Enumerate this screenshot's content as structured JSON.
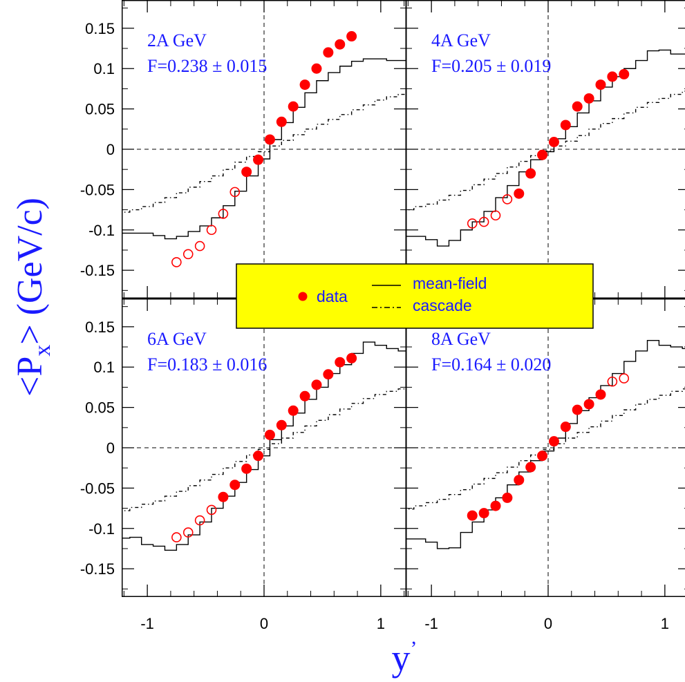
{
  "chart_data": {
    "type": "scatter",
    "xlabel": "y'",
    "ylabel": "<Px> (GeV/c)",
    "xlim": [
      -1.22,
      1.22
    ],
    "ylim": [
      -0.185,
      0.185
    ],
    "xticks": [
      -1,
      0,
      1
    ],
    "xtick_labels": [
      "-1",
      "0",
      "1"
    ],
    "yticks": [
      -0.15,
      -0.1,
      -0.05,
      0,
      0.05,
      0.1,
      0.15
    ],
    "ytick_labels": [
      "-0.15",
      "-0.1",
      "-0.05",
      "0",
      "0.05",
      "0.1",
      "0.15"
    ],
    "legend": {
      "placement": "center",
      "background": "#ffff00",
      "entries": [
        {
          "label": "data",
          "style": "filled-circle"
        },
        {
          "label": "mean-field",
          "style": "solid-line"
        },
        {
          "label": "cascade",
          "style": "dash-dot-line"
        }
      ]
    },
    "colors": {
      "data": "#ff0000",
      "text": "#1a1aff",
      "lines": "#000000"
    },
    "panels": [
      {
        "title": "2A GeV",
        "subtitle": "F=0.238 ± 0.015",
        "data_filled": {
          "x": [
            -0.15,
            -0.05,
            0.05,
            0.15,
            0.25,
            0.35,
            0.45,
            0.55,
            0.65,
            0.75
          ],
          "y": [
            -0.028,
            -0.013,
            0.012,
            0.034,
            0.053,
            0.08,
            0.1,
            0.12,
            0.13,
            0.14
          ]
        },
        "data_open": {
          "x": [
            -0.25,
            -0.35,
            -0.45,
            -0.55,
            -0.65,
            -0.75
          ],
          "y": [
            -0.053,
            -0.08,
            -0.1,
            -0.12,
            -0.13,
            -0.14
          ]
        },
        "mean_field": {
          "x": [
            -1.25,
            -0.95,
            -0.85,
            -0.75,
            -0.65,
            -0.55,
            -0.45,
            -0.35,
            -0.25,
            -0.15,
            -0.05,
            0.05,
            0.15,
            0.25,
            0.35,
            0.45,
            0.55,
            0.65,
            0.75,
            0.85,
            0.95,
            1.05,
            1.25
          ],
          "y": [
            -0.104,
            -0.107,
            -0.111,
            -0.108,
            -0.102,
            -0.095,
            -0.085,
            -0.07,
            -0.052,
            -0.033,
            -0.012,
            0.012,
            0.033,
            0.052,
            0.07,
            0.085,
            0.095,
            0.103,
            0.109,
            0.112,
            0.112,
            0.11,
            0.108
          ]
        },
        "cascade": {
          "x": [
            -1.25,
            -1.15,
            -1.05,
            -0.95,
            -0.85,
            -0.75,
            -0.65,
            -0.55,
            -0.45,
            -0.35,
            -0.25,
            -0.15,
            -0.05,
            0.05,
            0.15,
            0.25,
            0.35,
            0.45,
            0.55,
            0.65,
            0.75,
            0.85,
            0.95,
            1.05,
            1.15,
            1.25
          ],
          "y": [
            -0.078,
            -0.075,
            -0.071,
            -0.066,
            -0.06,
            -0.054,
            -0.047,
            -0.04,
            -0.033,
            -0.025,
            -0.016,
            -0.009,
            -0.003,
            0.004,
            0.011,
            0.018,
            0.025,
            0.031,
            0.037,
            0.043,
            0.049,
            0.055,
            0.061,
            0.065,
            0.068,
            0.07
          ]
        }
      },
      {
        "title": "4A GeV",
        "subtitle": "F=0.205 ± 0.019",
        "data_filled": {
          "x": [
            -0.25,
            -0.15,
            -0.05,
            0.05,
            0.15,
            0.25,
            0.35,
            0.45,
            0.55,
            0.65
          ],
          "y": [
            -0.055,
            -0.03,
            -0.007,
            0.009,
            0.03,
            0.053,
            0.063,
            0.08,
            0.09,
            0.093
          ]
        },
        "data_open": {
          "x": [
            -0.35,
            -0.45,
            -0.55,
            -0.65
          ],
          "y": [
            -0.062,
            -0.082,
            -0.09,
            -0.092
          ]
        },
        "mean_field": {
          "x": [
            -1.25,
            -1.05,
            -0.95,
            -0.85,
            -0.75,
            -0.65,
            -0.55,
            -0.45,
            -0.35,
            -0.25,
            -0.15,
            -0.05,
            0.05,
            0.15,
            0.25,
            0.35,
            0.45,
            0.55,
            0.65,
            0.75,
            0.85,
            0.95,
            1.05,
            1.25
          ],
          "y": [
            -0.108,
            -0.112,
            -0.12,
            -0.113,
            -0.1,
            -0.09,
            -0.077,
            -0.06,
            -0.045,
            -0.028,
            -0.013,
            -0.003,
            0.013,
            0.028,
            0.045,
            0.06,
            0.077,
            0.09,
            0.1,
            0.11,
            0.122,
            0.123,
            0.118,
            0.117
          ]
        },
        "cascade": {
          "x": [
            -1.25,
            -1.15,
            -1.05,
            -0.95,
            -0.85,
            -0.75,
            -0.65,
            -0.55,
            -0.45,
            -0.35,
            -0.25,
            -0.15,
            -0.05,
            0.05,
            0.15,
            0.25,
            0.35,
            0.45,
            0.55,
            0.65,
            0.75,
            0.85,
            0.95,
            1.05,
            1.15,
            1.25
          ],
          "y": [
            -0.075,
            -0.071,
            -0.068,
            -0.063,
            -0.057,
            -0.051,
            -0.044,
            -0.037,
            -0.03,
            -0.022,
            -0.015,
            -0.008,
            -0.002,
            0.004,
            0.01,
            0.017,
            0.025,
            0.032,
            0.038,
            0.045,
            0.052,
            0.058,
            0.063,
            0.068,
            0.072,
            0.075
          ]
        }
      },
      {
        "title": "6A GeV",
        "subtitle": "F=0.183 ± 0.016",
        "data_filled": {
          "x": [
            -0.35,
            -0.25,
            -0.15,
            -0.05,
            0.05,
            0.15,
            0.25,
            0.35,
            0.45,
            0.55,
            0.65,
            0.75
          ],
          "y": [
            -0.061,
            -0.046,
            -0.026,
            -0.01,
            0.016,
            0.028,
            0.046,
            0.064,
            0.078,
            0.091,
            0.106,
            0.111
          ]
        },
        "data_open": {
          "x": [
            -0.45,
            -0.55,
            -0.65,
            -0.75
          ],
          "y": [
            -0.077,
            -0.09,
            -0.105,
            -0.111
          ]
        },
        "mean_field": {
          "x": [
            -1.25,
            -1.15,
            -1.05,
            -0.95,
            -0.85,
            -0.75,
            -0.65,
            -0.55,
            -0.45,
            -0.35,
            -0.25,
            -0.15,
            -0.05,
            0.05,
            0.15,
            0.25,
            0.35,
            0.45,
            0.55,
            0.65,
            0.75,
            0.85,
            0.95,
            1.05,
            1.15,
            1.25
          ],
          "y": [
            -0.112,
            -0.111,
            -0.12,
            -0.122,
            -0.127,
            -0.12,
            -0.108,
            -0.092,
            -0.075,
            -0.06,
            -0.043,
            -0.027,
            -0.01,
            0.01,
            0.027,
            0.043,
            0.06,
            0.075,
            0.092,
            0.103,
            0.117,
            0.131,
            0.127,
            0.123,
            0.12,
            0.125
          ]
        },
        "cascade": {
          "x": [
            -1.25,
            -1.15,
            -1.05,
            -0.95,
            -0.85,
            -0.75,
            -0.65,
            -0.55,
            -0.45,
            -0.35,
            -0.25,
            -0.15,
            -0.05,
            0.05,
            0.15,
            0.25,
            0.35,
            0.45,
            0.55,
            0.65,
            0.75,
            0.85,
            0.95,
            1.05,
            1.15,
            1.25
          ],
          "y": [
            -0.078,
            -0.074,
            -0.07,
            -0.066,
            -0.06,
            -0.054,
            -0.047,
            -0.04,
            -0.033,
            -0.025,
            -0.017,
            -0.009,
            -0.002,
            0.005,
            0.012,
            0.019,
            0.027,
            0.034,
            0.041,
            0.048,
            0.055,
            0.061,
            0.066,
            0.07,
            0.073,
            0.075
          ]
        }
      },
      {
        "title": "8A GeV",
        "subtitle": "F=0.164 ± 0.020",
        "data_filled": {
          "x": [
            -0.65,
            -0.55,
            -0.45,
            -0.35,
            -0.25,
            -0.15,
            -0.05,
            0.05,
            0.15,
            0.25,
            0.35,
            0.45
          ],
          "y": [
            -0.084,
            -0.081,
            -0.072,
            -0.062,
            -0.04,
            -0.024,
            -0.01,
            0.008,
            0.026,
            0.047,
            0.054,
            0.066
          ]
        },
        "data_open": {
          "x": [
            0.55,
            0.65
          ],
          "y": [
            0.082,
            0.086
          ]
        },
        "mean_field": {
          "x": [
            -1.25,
            -1.05,
            -0.95,
            -0.85,
            -0.75,
            -0.65,
            -0.55,
            -0.45,
            -0.35,
            -0.25,
            -0.15,
            -0.05,
            0.05,
            0.15,
            0.25,
            0.35,
            0.45,
            0.55,
            0.65,
            0.75,
            0.85,
            0.95,
            1.05,
            1.15,
            1.25
          ],
          "y": [
            -0.113,
            -0.117,
            -0.125,
            -0.124,
            -0.105,
            -0.092,
            -0.077,
            -0.062,
            -0.046,
            -0.03,
            -0.016,
            -0.004,
            0.012,
            0.03,
            0.046,
            0.062,
            0.077,
            0.092,
            0.107,
            0.12,
            0.133,
            0.127,
            0.125,
            0.123,
            0.123
          ]
        },
        "cascade": {
          "x": [
            -1.25,
            -1.15,
            -1.05,
            -0.95,
            -0.85,
            -0.75,
            -0.65,
            -0.55,
            -0.45,
            -0.35,
            -0.25,
            -0.15,
            -0.05,
            0.05,
            0.15,
            0.25,
            0.35,
            0.45,
            0.55,
            0.65,
            0.75,
            0.85,
            0.95,
            1.05,
            1.15,
            1.25
          ],
          "y": [
            -0.076,
            -0.072,
            -0.068,
            -0.064,
            -0.058,
            -0.052,
            -0.045,
            -0.038,
            -0.031,
            -0.024,
            -0.016,
            -0.009,
            -0.002,
            0.005,
            0.012,
            0.019,
            0.026,
            0.033,
            0.04,
            0.047,
            0.054,
            0.06,
            0.065,
            0.07,
            0.073,
            0.076
          ]
        }
      }
    ]
  }
}
